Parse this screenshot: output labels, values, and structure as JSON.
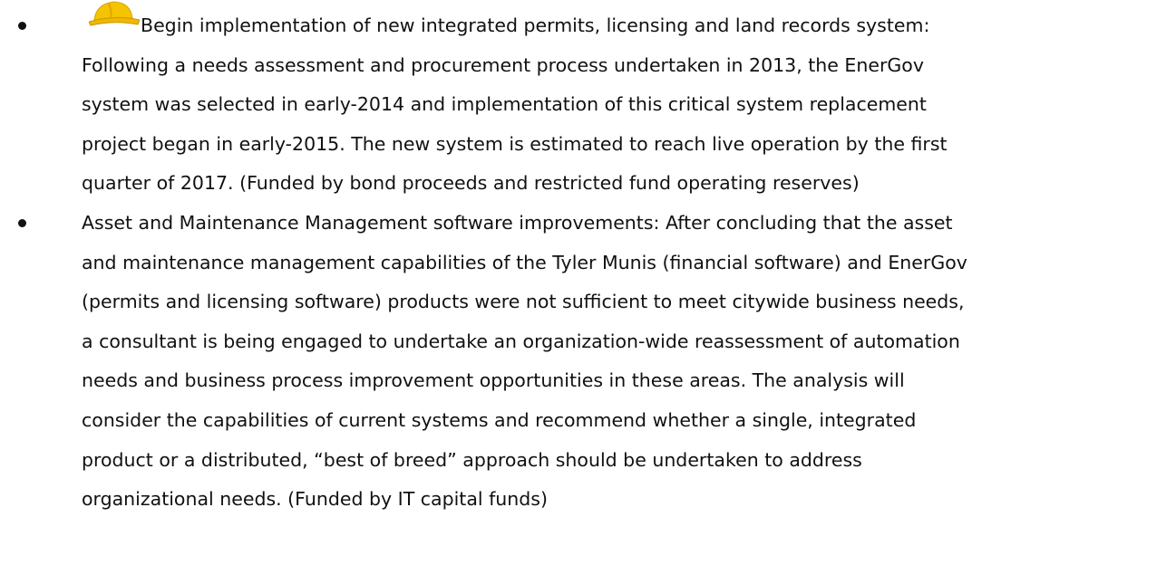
{
  "items": [
    {
      "lines": [
        "Begin implementation of new integrated permits, licensing and land records system:",
        "Following a needs assessment and procurement process undertaken in 2013, the EnerGov",
        "system was selected in early-2014 and implementation of this critical system replacement",
        "project began in early-2015.  The new system is estimated to reach live operation by the first",
        "quarter of 2017.  (Funded by bond proceeds and restricted fund operating reserves)"
      ]
    },
    {
      "lines": [
        "Asset and Maintenance Management software improvements:  After concluding that the asset",
        "and maintenance management capabilities of the Tyler Munis (financial software) and EnerGov",
        "(permits and licensing software) products were not sufficient to meet citywide business needs,",
        "a consultant is being engaged to undertake an organization-wide reassessment of automation",
        "needs and business process improvement opportunities in these areas.  The analysis will",
        "consider the capabilities of current systems and recommend whether a single, integrated",
        "product or a distributed, “best of breed” approach should be undertaken to address",
        "organizational needs.  (Funded by IT capital funds)"
      ]
    }
  ]
}
